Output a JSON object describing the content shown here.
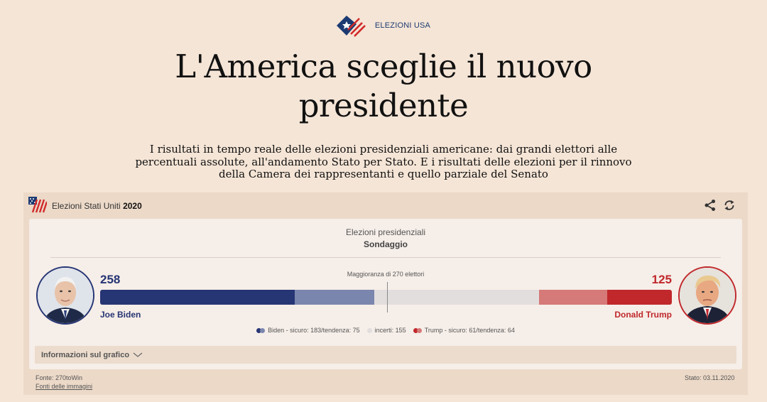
{
  "brand": {
    "label": "ELEZIONI USA",
    "icon": "usa-flag-icon"
  },
  "headline": "L'America sceglie il nuovo presidente",
  "subtitle": "I risultati in tempo reale delle elezioni presidenziali americane: dai grandi elettori alle percentuali assolute, all'andamento Stato per Stato. E i risultati delle elezioni per il rinnovo della Camera dei rappresentanti e quello parziale del Senato",
  "widget": {
    "title_prefix": "Elezioni Stati Uniti",
    "title_year": "2020",
    "panel_title": "Elezioni presidenziali",
    "panel_subtitle": "Sondaggio",
    "majority_label": "Maggioranza di 270 elettori",
    "info_label": "Informazioni sul grafico",
    "source": "Fonte: 270toWin",
    "images_link": "Fonti delle immagini",
    "state": "Stato: 03.11.2020"
  },
  "candidates": {
    "left": {
      "name": "Joe Biden",
      "total": "258",
      "color": "#263574"
    },
    "right": {
      "name": "Donald Trump",
      "total": "125",
      "color": "#c0282c"
    }
  },
  "legend": {
    "biden": "Biden - sicuro: 183/tendenza: 75",
    "undecided": "incerti: 155",
    "trump": "Trump - sicuro: 61/tendenza: 64"
  },
  "chart_data": {
    "type": "bar",
    "total_electors": 538,
    "majority": 270,
    "segments": [
      {
        "key": "biden_safe",
        "value": 183,
        "color": "#263574"
      },
      {
        "key": "biden_lean",
        "value": 75,
        "color": "#7a86ae"
      },
      {
        "key": "undecided",
        "value": 155,
        "color": "#e2dede"
      },
      {
        "key": "trump_lean",
        "value": 64,
        "color": "#d57a78"
      },
      {
        "key": "trump_safe",
        "value": 61,
        "color": "#c0282c"
      }
    ]
  }
}
